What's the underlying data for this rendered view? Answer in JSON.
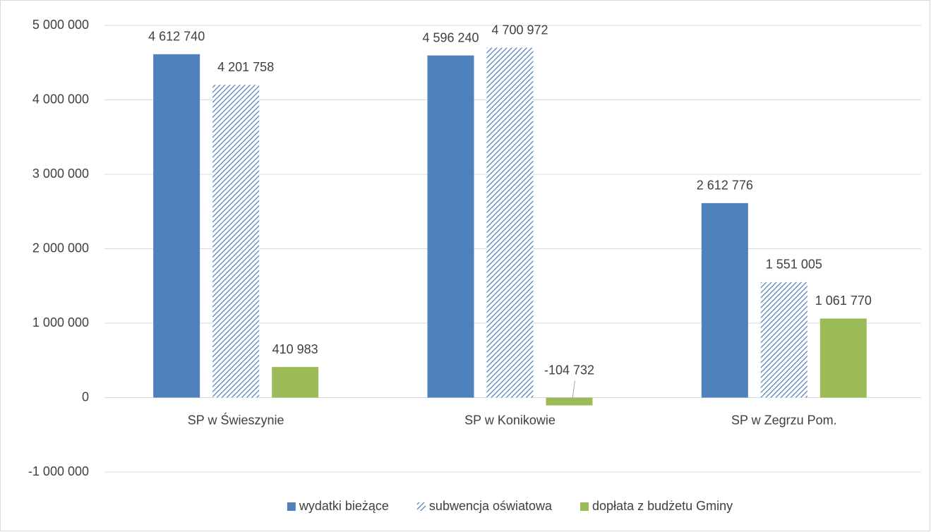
{
  "chart_data": {
    "type": "bar",
    "categories": [
      "SP w Świeszynie",
      "SP w Konikowie",
      "SP w Zegrzu Pom."
    ],
    "series": [
      {
        "name": "wydatki bieżące",
        "color": "#4f81bd",
        "values": [
          4612740,
          4596240,
          2612776
        ],
        "value_labels": [
          "4 612 740",
          "4 596 240",
          "2 612 776"
        ]
      },
      {
        "name": "subwencja oświatowa",
        "color": "#4f81bd",
        "pattern": "diagonal-hatch",
        "values": [
          4201758,
          4700972,
          1551005
        ],
        "value_labels": [
          "4 201 758",
          "4 700 972",
          "1 551 005"
        ]
      },
      {
        "name": "dopłata z budżetu Gminy",
        "color": "#9bbb59",
        "values": [
          410983,
          -104732,
          1061770
        ],
        "value_labels": [
          "410 983",
          "-104 732",
          "1 061 770"
        ]
      }
    ],
    "ylim": [
      -1000000,
      5000000
    ],
    "yticks": [
      {
        "value": -1000000,
        "label": "-1 000 000"
      },
      {
        "value": 0,
        "label": "0"
      },
      {
        "value": 1000000,
        "label": "1 000 000"
      },
      {
        "value": 2000000,
        "label": "2 000 000"
      },
      {
        "value": 3000000,
        "label": "3 000 000"
      },
      {
        "value": 4000000,
        "label": "4 000 000"
      },
      {
        "value": 5000000,
        "label": "5 000 000"
      }
    ],
    "grid": true,
    "legend": "bottom"
  }
}
